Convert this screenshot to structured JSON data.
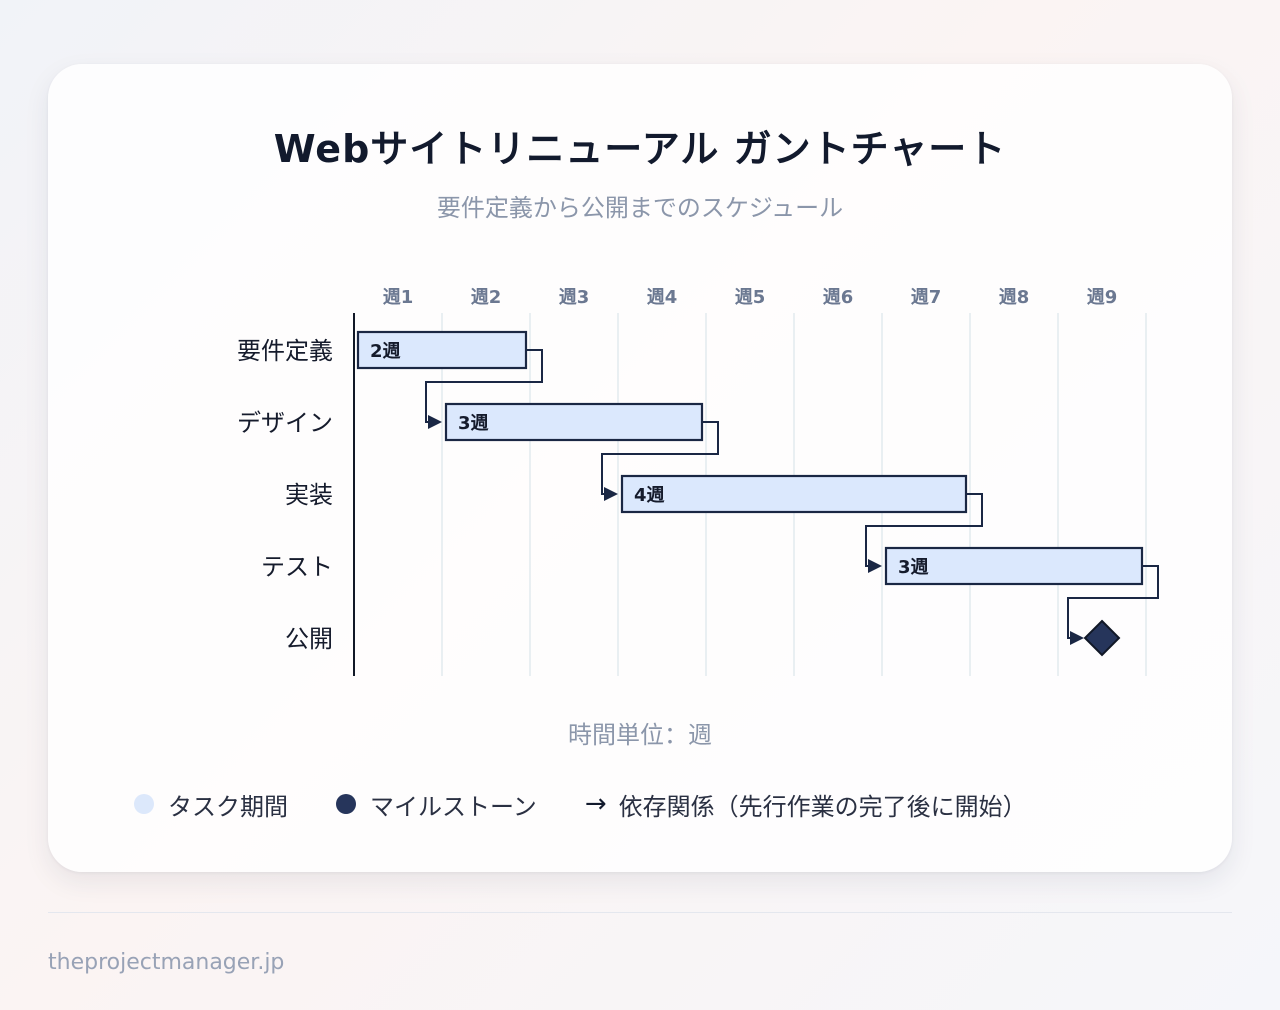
{
  "title": "Webサイトリニューアル ガントチャート",
  "subtitle": "要件定義から公開までのスケジュール",
  "unit_label": "時間単位：週",
  "legend": {
    "task": "タスク期間",
    "milestone": "マイルストーン",
    "dependency_symbol": "→",
    "dependency": "依存関係（先行作業の完了後に開始）"
  },
  "footer": "theprojectmanager.jp",
  "colors": {
    "bar_fill": "#dbe8fd",
    "bar_stroke": "#1a2744",
    "milestone": "#26355b",
    "grid": "#dbe6ea",
    "legend_task_dot": "#dce8fb",
    "legend_milestone_dot": "#26355b"
  },
  "chart_data": {
    "type": "gantt",
    "x_unit": "週",
    "weeks": [
      "週1",
      "週2",
      "週3",
      "週4",
      "週5",
      "週6",
      "週7",
      "週8",
      "週9"
    ],
    "tasks": [
      {
        "name": "要件定義",
        "start_week": 1,
        "duration_weeks": 2,
        "label": "2週"
      },
      {
        "name": "デザイン",
        "start_week": 2,
        "duration_weeks": 3,
        "label": "3週",
        "depends_on": "要件定義"
      },
      {
        "name": "実装",
        "start_week": 4,
        "duration_weeks": 4,
        "label": "4週",
        "depends_on": "デザイン"
      },
      {
        "name": "テスト",
        "start_week": 7,
        "duration_weeks": 3,
        "label": "3週",
        "depends_on": "実装"
      },
      {
        "name": "公開",
        "milestone_week": 9,
        "milestone": true,
        "depends_on": "テスト"
      }
    ]
  }
}
